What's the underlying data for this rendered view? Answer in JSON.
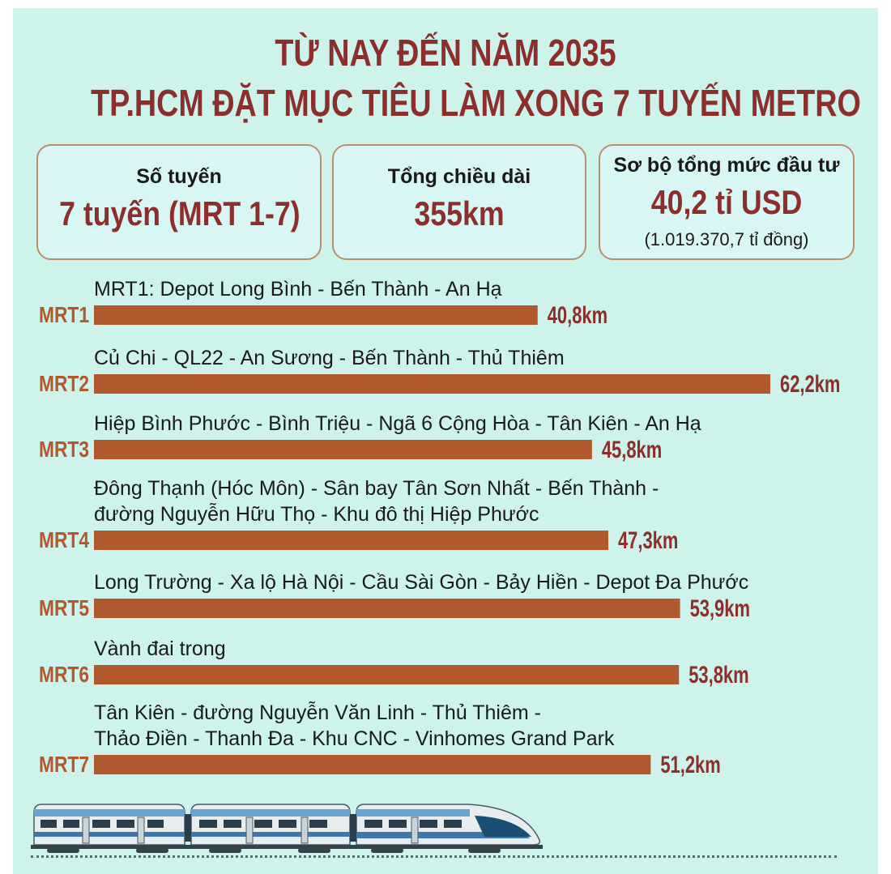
{
  "header": {
    "title_line1": "TỪ NAY ĐẾN NĂM 2035",
    "title_line2": "TP.HCM ĐẶT MỤC TIÊU LÀM XONG 7 TUYẾN METRO"
  },
  "cards": [
    {
      "label": "Số tuyến",
      "value": "7 tuyến (MRT 1-7)"
    },
    {
      "label": "Tổng chiều dài",
      "value": "355km"
    },
    {
      "label": "Sơ bộ tổng mức đầu tư",
      "value": "40,2 tỉ USD",
      "sub": "(1.019.370,7 tỉ đồng)"
    }
  ],
  "colors": {
    "background": "#cdf3ea",
    "bar": "#b1582c",
    "title": "#8c2f2c",
    "card_border": "#b98e6e"
  },
  "chart_data": {
    "type": "bar",
    "orientation": "horizontal",
    "unit": "km",
    "categories": [
      "MRT1",
      "MRT2",
      "MRT3",
      "MRT4",
      "MRT5",
      "MRT6",
      "MRT7"
    ],
    "values": [
      40.8,
      62.2,
      45.8,
      47.3,
      53.9,
      53.8,
      51.2
    ],
    "value_labels": [
      "40,8km",
      "62,2km",
      "45,8km",
      "47,3km",
      "53,9km",
      "53,8km",
      "51,2km"
    ],
    "routes": [
      [
        "MRT1: Depot Long Bình - Bến Thành - An Hạ"
      ],
      [
        "Củ Chi - QL22 - An Sương - Bến Thành - Thủ Thiêm"
      ],
      [
        "Hiệp Bình Phước - Bình Triệu - Ngã 6 Cộng Hòa - Tân Kiên - An Hạ"
      ],
      [
        "Đông Thạnh (Hóc Môn) - Sân bay Tân Sơn Nhất - Bến Thành -",
        "đường Nguyễn Hữu Thọ - Khu đô thị Hiệp Phước"
      ],
      [
        "Long Trường - Xa lộ Hà Nội - Cầu Sài Gòn - Bảy Hiền - Depot Đa Phước"
      ],
      [
        "Vành đai trong"
      ],
      [
        "Tân Kiên - đường Nguyễn Văn Linh - Thủ Thiêm -",
        "Thảo Điền - Thanh Đa - Khu CNC - Vinhomes Grand Park"
      ]
    ]
  },
  "illustration": {
    "icon": "metro-train-icon"
  }
}
